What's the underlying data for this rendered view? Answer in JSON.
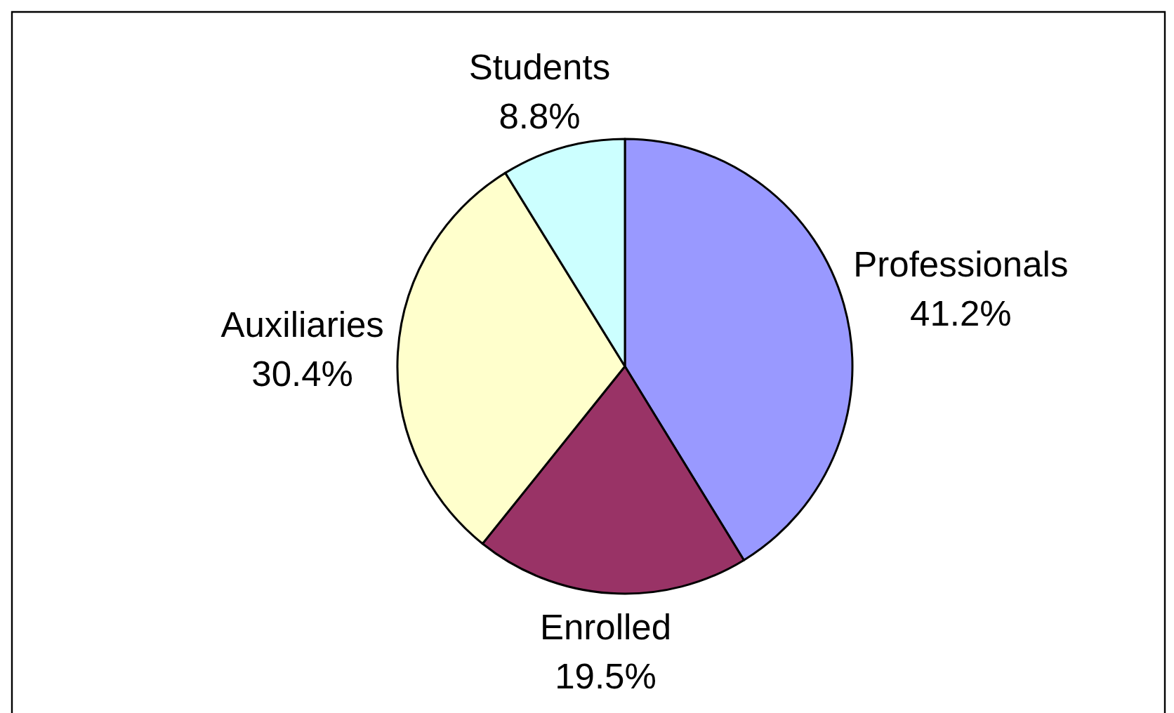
{
  "chart_data": {
    "type": "pie",
    "categories": [
      "Professionals",
      "Enrolled",
      "Auxiliaries",
      "Students"
    ],
    "values": [
      41.2,
      19.5,
      30.4,
      8.8
    ],
    "colors": [
      "#9999ff",
      "#993366",
      "#ffffcc",
      "#ccffff"
    ],
    "value_labels": [
      "41.2%",
      "19.5%",
      "30.4%",
      "8.8%"
    ]
  }
}
